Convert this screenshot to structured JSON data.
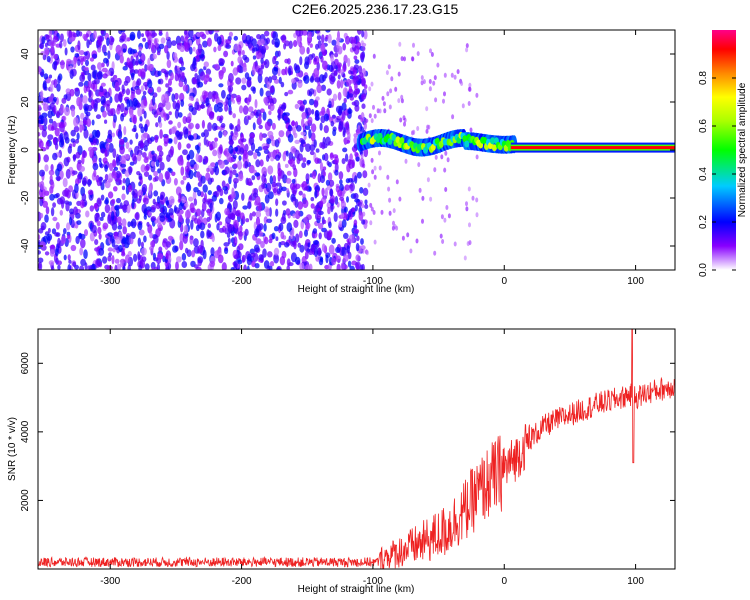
{
  "title": "C2E6.2025.236.17.23.G15",
  "chart_data": [
    {
      "type": "heatmap",
      "title": "C2E6.2025.236.17.23.G15",
      "xlabel": "Height of straight line (km)",
      "ylabel": "Frequency (Hz)",
      "xlim": [
        -355,
        130
      ],
      "ylim": [
        -50,
        50
      ],
      "xticks": [
        -300,
        -200,
        -100,
        0,
        100
      ],
      "xtick_labels": [
        "-300",
        "-200",
        "-100",
        "0",
        "100"
      ],
      "yticks": [
        -40,
        -20,
        0,
        20,
        40
      ],
      "ytick_labels": [
        "-40",
        "-20",
        "0",
        "20",
        "40"
      ],
      "description_regions": [
        {
          "x_range": [
            -355,
            -105
          ],
          "freq_range": [
            -50,
            50
          ],
          "amplitude": "low (0.05-0.2)"
        },
        {
          "x_range": [
            -110,
            5
          ],
          "freq_range": [
            -2,
            8
          ],
          "amplitude": "medium (0.3-0.7)"
        },
        {
          "x_range": [
            5,
            130
          ],
          "freq_center": 1,
          "amplitude": "high (0.9-1.0)"
        }
      ],
      "colorbar": {
        "label": "Normalized spectral amplitude",
        "range": [
          0,
          1
        ],
        "ticks": [
          0,
          0.2,
          0.4,
          0.6,
          0.8
        ],
        "tick_labels": [
          "0.0",
          "0.2",
          "0.4",
          "0.6",
          "0.8"
        ]
      }
    },
    {
      "type": "line",
      "xlabel": "Height of straight line (km)",
      "ylabel": "SNR (10 * v/v)",
      "xlim": [
        -355,
        130
      ],
      "ylim": [
        0,
        7000
      ],
      "xticks": [
        -300,
        -200,
        -100,
        0,
        100
      ],
      "xtick_labels": [
        "-300",
        "-200",
        "-100",
        "0",
        "100"
      ],
      "yticks": [
        2000,
        4000,
        6000
      ],
      "ytick_labels": [
        "2000",
        "4000",
        "6000"
      ],
      "series": [
        {
          "name": "SNR",
          "color": "#ee2222",
          "x": [
            -355,
            -300,
            -250,
            -200,
            -150,
            -110,
            -95,
            -80,
            -60,
            -45,
            -30,
            -20,
            -10,
            0,
            10,
            20,
            30,
            40,
            50,
            60,
            70,
            80,
            90,
            95,
            100,
            110,
            120,
            130
          ],
          "y": [
            200,
            200,
            200,
            200,
            200,
            200,
            300,
            500,
            800,
            1100,
            1700,
            2200,
            2600,
            2900,
            3300,
            3800,
            4150,
            4350,
            4500,
            4650,
            4800,
            4900,
            5000,
            5100,
            5000,
            5150,
            5250,
            5350
          ],
          "spikes": [
            {
              "x": 98,
              "y": 7000
            },
            {
              "x": 98,
              "y": 3100
            }
          ]
        }
      ]
    }
  ]
}
